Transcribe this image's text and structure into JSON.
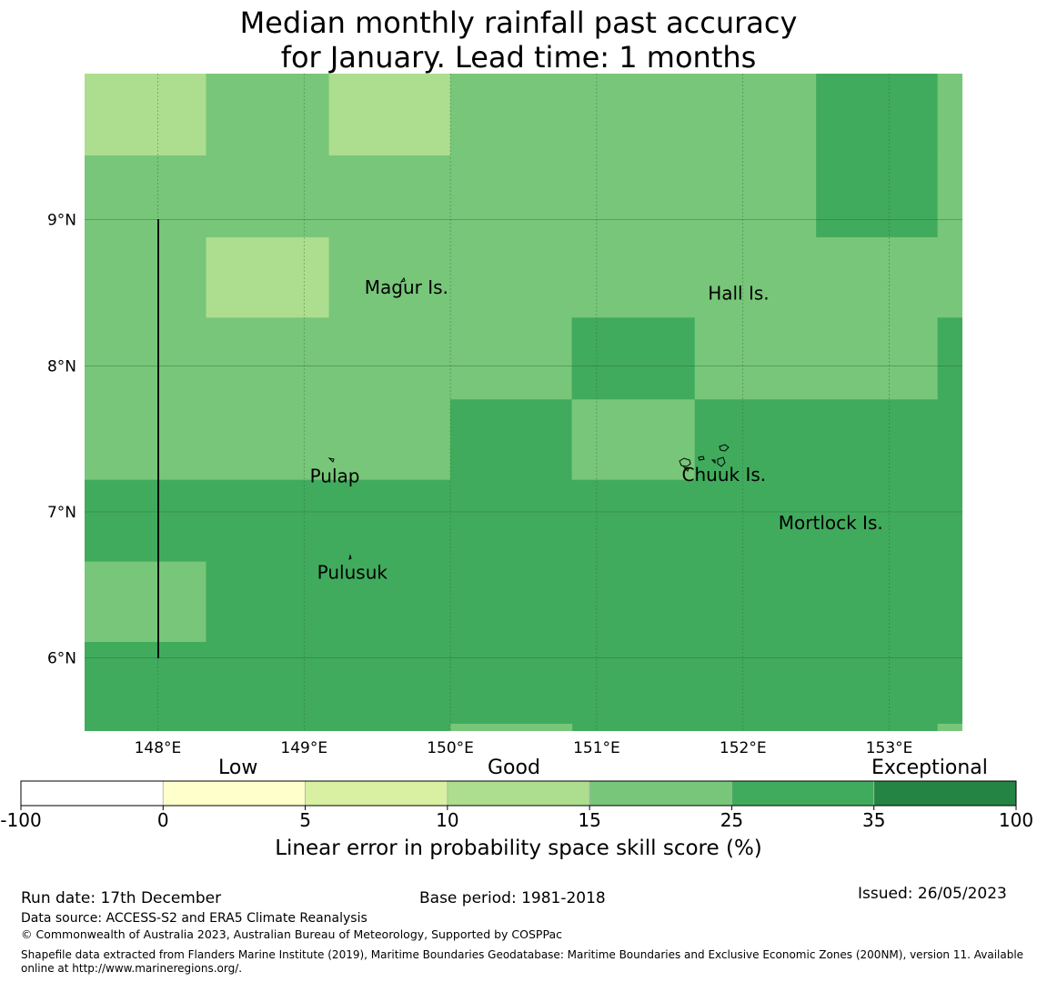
{
  "title": {
    "line1": "Median monthly rainfall past accuracy",
    "line2": "for January. Lead time: 1 months"
  },
  "map": {
    "lat_ticks": [
      "9°N",
      "8°N",
      "7°N",
      "6°N"
    ],
    "lon_ticks": [
      "148°E",
      "149°E",
      "150°E",
      "151°E",
      "152°E",
      "153°E"
    ],
    "extent": {
      "lon_min": 147.5,
      "lon_max": 153.5,
      "lat_min": 5.5,
      "lat_max": 10.0
    },
    "places": [
      {
        "name": "Magur Is.",
        "lon": 149.7,
        "lat": 8.53
      },
      {
        "name": "Hall Is.",
        "lon": 151.97,
        "lat": 8.49
      },
      {
        "name": "Pulap",
        "lon": 149.21,
        "lat": 7.24
      },
      {
        "name": "Chuuk Is.",
        "lon": 151.87,
        "lat": 7.25
      },
      {
        "name": "Mortlock Is.",
        "lon": 152.6,
        "lat": 6.92
      },
      {
        "name": "Pulusuk",
        "lon": 149.33,
        "lat": 6.58
      }
    ],
    "grid_cells": [
      {
        "lon": [
          147.5,
          148.33
        ],
        "lat": [
          9.44,
          10.0
        ],
        "class": 3
      },
      {
        "lon": [
          148.33,
          149.17
        ],
        "lat": [
          9.44,
          10.0
        ],
        "class": 4
      },
      {
        "lon": [
          149.17,
          150.0
        ],
        "lat": [
          9.44,
          10.0
        ],
        "class": 3
      },
      {
        "lon": [
          150.0,
          152.5
        ],
        "lat": [
          9.44,
          10.0
        ],
        "class": 4
      },
      {
        "lon": [
          152.5,
          153.33
        ],
        "lat": [
          9.44,
          10.0
        ],
        "class": 5
      },
      {
        "lon": [
          153.33,
          153.5
        ],
        "lat": [
          9.44,
          10.0
        ],
        "class": 4
      },
      {
        "lon": [
          147.5,
          152.5
        ],
        "lat": [
          8.88,
          9.44
        ],
        "class": 4
      },
      {
        "lon": [
          152.5,
          153.33
        ],
        "lat": [
          8.88,
          9.44
        ],
        "class": 5
      },
      {
        "lon": [
          153.33,
          153.5
        ],
        "lat": [
          8.88,
          9.44
        ],
        "class": 4
      },
      {
        "lon": [
          147.5,
          148.33
        ],
        "lat": [
          8.33,
          8.88
        ],
        "class": 4
      },
      {
        "lon": [
          148.33,
          149.17
        ],
        "lat": [
          8.33,
          8.88
        ],
        "class": 3
      },
      {
        "lon": [
          149.17,
          153.5
        ],
        "lat": [
          8.33,
          8.88
        ],
        "class": 4
      },
      {
        "lon": [
          147.5,
          150.83
        ],
        "lat": [
          7.77,
          8.33
        ],
        "class": 4
      },
      {
        "lon": [
          150.83,
          151.67
        ],
        "lat": [
          7.77,
          8.33
        ],
        "class": 5
      },
      {
        "lon": [
          151.67,
          153.33
        ],
        "lat": [
          7.77,
          8.33
        ],
        "class": 4
      },
      {
        "lon": [
          153.33,
          153.5
        ],
        "lat": [
          7.77,
          8.33
        ],
        "class": 5
      },
      {
        "lon": [
          147.5,
          150.0
        ],
        "lat": [
          7.22,
          7.77
        ],
        "class": 4
      },
      {
        "lon": [
          150.0,
          150.83
        ],
        "lat": [
          7.22,
          7.77
        ],
        "class": 5
      },
      {
        "lon": [
          150.83,
          151.67
        ],
        "lat": [
          7.22,
          7.77
        ],
        "class": 4
      },
      {
        "lon": [
          151.67,
          153.5
        ],
        "lat": [
          7.22,
          7.77
        ],
        "class": 5
      },
      {
        "lon": [
          147.5,
          153.5
        ],
        "lat": [
          6.66,
          7.22
        ],
        "class": 5
      },
      {
        "lon": [
          147.5,
          148.33
        ],
        "lat": [
          6.11,
          6.66
        ],
        "class": 4
      },
      {
        "lon": [
          148.33,
          153.5
        ],
        "lat": [
          6.11,
          6.66
        ],
        "class": 5
      },
      {
        "lon": [
          147.5,
          153.5
        ],
        "lat": [
          5.5,
          6.11
        ],
        "class": 5
      },
      {
        "lon": [
          150.0,
          150.83
        ],
        "lat": [
          5.5,
          5.55
        ],
        "class": 4
      },
      {
        "lon": [
          153.33,
          153.5
        ],
        "lat": [
          5.5,
          5.55
        ],
        "class": 4
      }
    ]
  },
  "legend": {
    "categories": [
      "Low",
      "Good",
      "Exceptional"
    ],
    "tick_labels": [
      "-100",
      "0",
      "5",
      "10",
      "15",
      "25",
      "35",
      "100"
    ],
    "colors": [
      "#ffffff",
      "#ffffcc",
      "#d9f0a3",
      "#addd8e",
      "#78c679",
      "#41ab5d",
      "#238443"
    ],
    "axis_label": "Linear error in probability space skill score (%)"
  },
  "footer": {
    "run_date": "Run date: 17th December",
    "base_period": "Base period: 1981-2018",
    "issued": "Issued: 26/05/2023",
    "data_source": "Data source: ACCESS-S2 and ERA5 Climate Reanalysis",
    "copyright": "© Commonwealth of Australia 2023, Australian Bureau of Meteorology, Supported by COSPPac",
    "shapefile": "Shapefile data extracted from Flanders Marine Institute (2019), Maritime Boundaries Geodatabase: Maritime Boundaries and Exclusive Economic Zones (200NM), version 11. Available online at http://www.marineregions.org/."
  }
}
